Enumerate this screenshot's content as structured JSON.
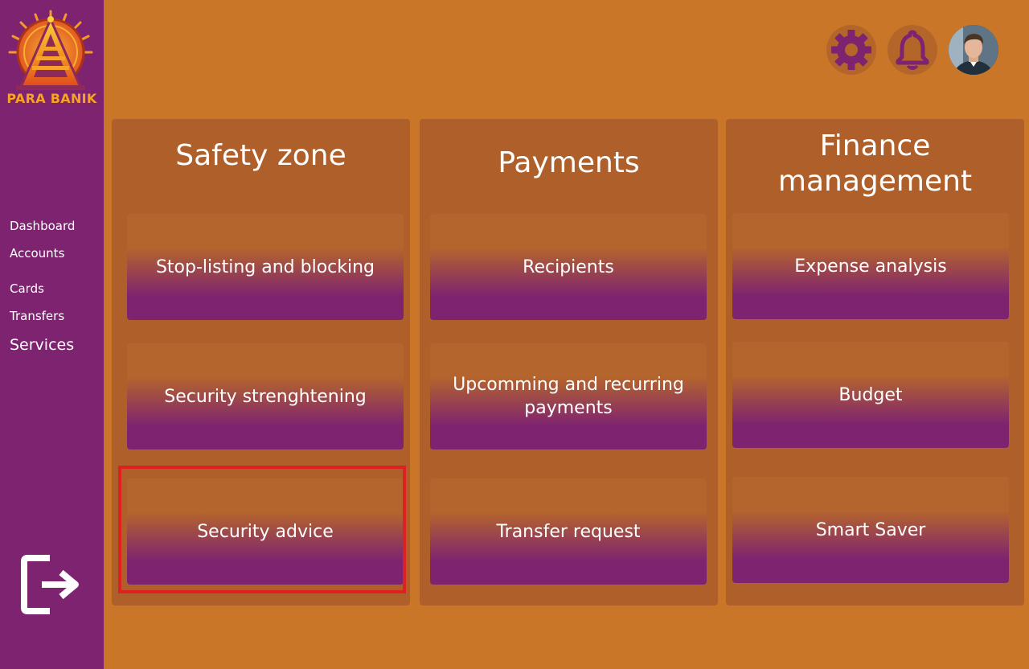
{
  "brand": {
    "name": "PARA BANIK"
  },
  "sidebar": {
    "items": [
      {
        "label": "Dashboard"
      },
      {
        "label": "Accounts"
      },
      {
        "label": "Cards"
      },
      {
        "label": "Transfers"
      },
      {
        "label": "Services"
      }
    ],
    "logout_icon": "logout-icon"
  },
  "header": {
    "icons": [
      "gear-icon",
      "bell-icon",
      "avatar"
    ]
  },
  "colors": {
    "background": "#C97628",
    "sidebar": "#7E2370",
    "panel": "#AE5F2A",
    "card_top": "#B4642D",
    "card_bottom": "#7E2370",
    "icon_purple": "#7E2370",
    "highlight": "#E02020"
  },
  "panels": [
    {
      "title": "Safety zone",
      "cards": [
        {
          "label": "Stop-listing and blocking"
        },
        {
          "label": "Security strenghtening"
        },
        {
          "label": "Security advice"
        }
      ]
    },
    {
      "title": "Payments",
      "cards": [
        {
          "label": "Recipients"
        },
        {
          "label": "Upcomming and recurring payments"
        },
        {
          "label": "Transfer request"
        }
      ]
    },
    {
      "title": "Finance management",
      "cards": [
        {
          "label": "Expense analysis"
        },
        {
          "label": "Budget"
        },
        {
          "label": "Smart Saver"
        }
      ]
    }
  ]
}
